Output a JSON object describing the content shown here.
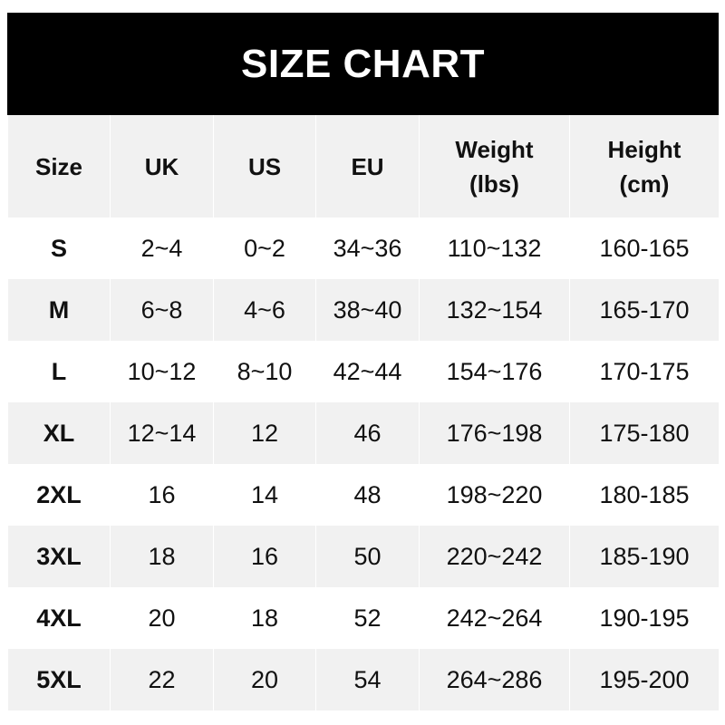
{
  "title": "SIZE CHART",
  "headers": [
    "Size",
    "UK",
    "US",
    "EU",
    "Weight\n(lbs)",
    "Height\n(cm)"
  ],
  "rows": [
    [
      "S",
      "2~4",
      "0~2",
      "34~36",
      "110~132",
      "160-165"
    ],
    [
      "M",
      "6~8",
      "4~6",
      "38~40",
      "132~154",
      "165-170"
    ],
    [
      "L",
      "10~12",
      "8~10",
      "42~44",
      "154~176",
      "170-175"
    ],
    [
      "XL",
      "12~14",
      "12",
      "46",
      "176~198",
      "175-180"
    ],
    [
      "2XL",
      "16",
      "14",
      "48",
      "198~220",
      "180-185"
    ],
    [
      "3XL",
      "18",
      "16",
      "50",
      "220~242",
      "185-190"
    ],
    [
      "4XL",
      "20",
      "18",
      "52",
      "242~264",
      "190-195"
    ],
    [
      "5XL",
      "22",
      "20",
      "54",
      "264~286",
      "195-200"
    ]
  ],
  "colors": {
    "title_bg": "#000000",
    "title_text": "#ffffff",
    "stripe": "#f1f1f1"
  }
}
